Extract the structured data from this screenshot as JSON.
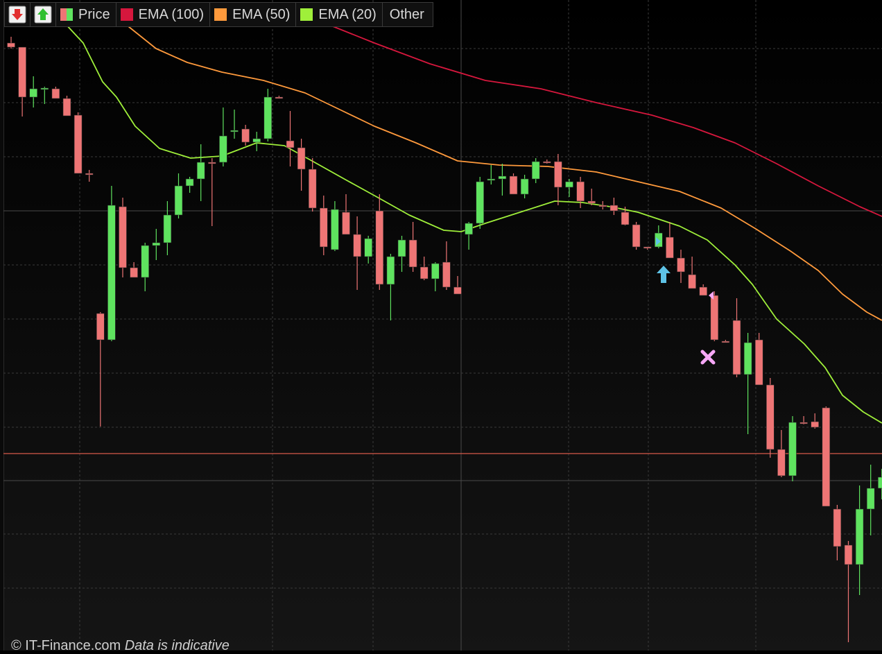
{
  "colors": {
    "up": "#5fe35f",
    "down": "#ee7575",
    "ema100": "#d6173d",
    "ema50": "#ff9a3c",
    "ema20": "#9fef3a",
    "hline": "#d75a4a",
    "grid": "#3a3a3a"
  },
  "toolbar": {
    "buttons": [
      {
        "name": "sell-arrow-icon",
        "color": "#e23030"
      },
      {
        "name": "buy-arrow-icon",
        "color": "#30c030"
      }
    ],
    "legend": [
      {
        "label": "Price",
        "swatch": "split"
      },
      {
        "label": "EMA (100)",
        "swatch": "#d6173d"
      },
      {
        "label": "EMA (50)",
        "swatch": "#ff9a3c"
      },
      {
        "label": "EMA (20)",
        "swatch": "#9fef3a"
      },
      {
        "label": "Other",
        "swatch": "none"
      }
    ]
  },
  "watermark": {
    "site": "© IT-Finance.com",
    "note": "Data is indicative"
  },
  "chart_data": {
    "type": "candlestick",
    "ylim": [
      0,
      938
    ],
    "grid": true,
    "horizontal_line": 654,
    "candles": [
      [
        62,
        53,
        70,
        68
      ],
      [
        68,
        70,
        168,
        140
      ],
      [
        140,
        110,
        155,
        128
      ],
      [
        128,
        125,
        150,
        127
      ],
      [
        128,
        125,
        140,
        142
      ],
      [
        142,
        138,
        150,
        167
      ],
      [
        166,
        162,
        175,
        250
      ],
      [
        250,
        245,
        262,
        251
      ],
      [
        452,
        450,
        615,
        490
      ],
      [
        490,
        268,
        492,
        296
      ],
      [
        298,
        285,
        400,
        386
      ],
      [
        386,
        378,
        400,
        400
      ],
      [
        400,
        350,
        420,
        354
      ],
      [
        354,
        330,
        375,
        350
      ],
      [
        350,
        290,
        368,
        310
      ],
      [
        310,
        250,
        315,
        268
      ],
      [
        268,
        255,
        278,
        258
      ],
      [
        258,
        208,
        290,
        234
      ],
      [
        234,
        228,
        326,
        234
      ],
      [
        234,
        155,
        240,
        196
      ],
      [
        190,
        158,
        200,
        188
      ],
      [
        186,
        180,
        210,
        205
      ],
      [
        205,
        190,
        218,
        200
      ],
      [
        200,
        128,
        204,
        140
      ],
      [
        140,
        138,
        142,
        140
      ],
      [
        203,
        160,
        240,
        213
      ],
      [
        213,
        200,
        275,
        244
      ],
      [
        244,
        228,
        305,
        300
      ],
      [
        300,
        282,
        368,
        356
      ],
      [
        360,
        290,
        362,
        302
      ],
      [
        306,
        280,
        338,
        338
      ],
      [
        338,
        312,
        418,
        370
      ],
      [
        370,
        340,
        380,
        344
      ],
      [
        304,
        280,
        418,
        410
      ],
      [
        410,
        366,
        462,
        370
      ],
      [
        370,
        340,
        392,
        346
      ],
      [
        346,
        320,
        392,
        385
      ],
      [
        385,
        370,
        404,
        402
      ],
      [
        402,
        378,
        420,
        380
      ],
      [
        378,
        348,
        418,
        414
      ],
      [
        414,
        398,
        424,
        424
      ],
      [
        338,
        320,
        360,
        322
      ],
      [
        322,
        255,
        330,
        262
      ],
      [
        260,
        238,
        266,
        258
      ],
      [
        258,
        236,
        282,
        254
      ],
      [
        254,
        250,
        280,
        280
      ],
      [
        280,
        252,
        286,
        258
      ],
      [
        258,
        228,
        264,
        233
      ],
      [
        233,
        230,
        236,
        233
      ],
      [
        233,
        222,
        296,
        270
      ],
      [
        270,
        258,
        284,
        262
      ],
      [
        262,
        255,
        300,
        290
      ],
      [
        290,
        272,
        296,
        293
      ],
      [
        296,
        290,
        302,
        296
      ],
      [
        296,
        285,
        310,
        304
      ],
      [
        306,
        298,
        325,
        324
      ],
      [
        324,
        320,
        360,
        356
      ],
      [
        356,
        356,
        360,
        358
      ],
      [
        356,
        325,
        358,
        336
      ],
      [
        342,
        320,
        368,
        372
      ],
      [
        372,
        360,
        408,
        392
      ],
      [
        396,
        370,
        416,
        416
      ],
      [
        414,
        410,
        422,
        426
      ],
      [
        426,
        420,
        492,
        490
      ],
      [
        492,
        490,
        494,
        492
      ],
      [
        462,
        430,
        544,
        540
      ],
      [
        540,
        480,
        626,
        494
      ],
      [
        490,
        480,
        550,
        555
      ],
      [
        555,
        545,
        660,
        648
      ],
      [
        648,
        620,
        688,
        686
      ],
      [
        686,
        600,
        694,
        609
      ],
      [
        609,
        600,
        612,
        609
      ],
      [
        608,
        596,
        618,
        616
      ],
      [
        588,
        586,
        690,
        730
      ],
      [
        734,
        728,
        808,
        788
      ],
      [
        786,
        780,
        926,
        814
      ],
      [
        814,
        700,
        858,
        734
      ],
      [
        734,
        670,
        772,
        704
      ],
      [
        704,
        676,
        720,
        688
      ]
    ],
    "ema100": [
      [
        470,
        34
      ],
      [
        540,
        62
      ],
      [
        620,
        92
      ],
      [
        700,
        116
      ],
      [
        780,
        128
      ],
      [
        860,
        148
      ],
      [
        940,
        166
      ],
      [
        1000,
        184
      ],
      [
        1060,
        206
      ],
      [
        1120,
        236
      ],
      [
        1180,
        268
      ],
      [
        1240,
        298
      ],
      [
        1272,
        312
      ]
    ],
    "ema50": [
      [
        180,
        34
      ],
      [
        225,
        70
      ],
      [
        270,
        90
      ],
      [
        320,
        104
      ],
      [
        380,
        116
      ],
      [
        440,
        134
      ],
      [
        490,
        158
      ],
      [
        540,
        182
      ],
      [
        600,
        206
      ],
      [
        660,
        232
      ],
      [
        720,
        238
      ],
      [
        790,
        240
      ],
      [
        860,
        248
      ],
      [
        920,
        262
      ],
      [
        980,
        276
      ],
      [
        1040,
        300
      ],
      [
        1090,
        330
      ],
      [
        1140,
        362
      ],
      [
        1180,
        390
      ],
      [
        1215,
        424
      ],
      [
        1250,
        450
      ],
      [
        1272,
        462
      ]
    ],
    "ema20": [
      [
        94,
        34
      ],
      [
        120,
        62
      ],
      [
        148,
        118
      ],
      [
        168,
        140
      ],
      [
        195,
        182
      ],
      [
        230,
        214
      ],
      [
        275,
        228
      ],
      [
        320,
        225
      ],
      [
        370,
        206
      ],
      [
        410,
        210
      ],
      [
        450,
        232
      ],
      [
        500,
        260
      ],
      [
        540,
        282
      ],
      [
        590,
        310
      ],
      [
        640,
        332
      ],
      [
        665,
        334
      ],
      [
        700,
        322
      ],
      [
        750,
        306
      ],
      [
        800,
        290
      ],
      [
        840,
        292
      ],
      [
        880,
        298
      ],
      [
        920,
        306
      ],
      [
        980,
        326
      ],
      [
        1020,
        346
      ],
      [
        1060,
        382
      ],
      [
        1085,
        410
      ],
      [
        1120,
        460
      ],
      [
        1160,
        496
      ],
      [
        1190,
        530
      ],
      [
        1215,
        570
      ],
      [
        1245,
        594
      ],
      [
        1272,
        610
      ]
    ],
    "markers": [
      {
        "type": "up-arrow",
        "x": 957,
        "y": 396,
        "color": "#5ec3e6"
      },
      {
        "type": "cross",
        "x": 1021,
        "y": 515,
        "color": "#f6a7f6"
      },
      {
        "type": "flag-right",
        "x": 946,
        "y": 348,
        "color": "#5ec3e6"
      },
      {
        "type": "flag-left",
        "x": 1029,
        "y": 426,
        "color": "#f6a7f6"
      }
    ]
  }
}
